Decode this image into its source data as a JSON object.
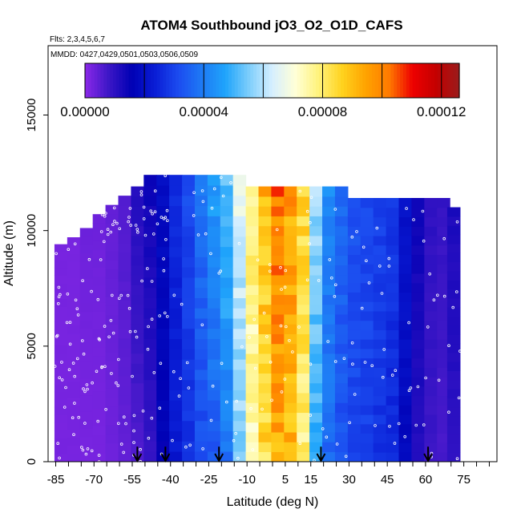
{
  "chart_data": {
    "type": "heatmap",
    "title": "ATOM4 Southbound jO3_O2_O1D_CAFS",
    "flights_label": "Flts: 2,3,4,5,6,7",
    "dates_label": "MMDD: 0427,0429,0501,0503,0506,0509",
    "xlabel": "Latitude (deg N)",
    "ylabel": "Altitude (m)",
    "xlim": [
      -88,
      88
    ],
    "ylim": [
      0,
      18000
    ],
    "x_ticks": [
      -85,
      -70,
      -55,
      -40,
      -25,
      -10,
      5,
      15,
      30,
      45,
      60,
      75
    ],
    "x_tick_labels": [
      "-85",
      "-70",
      "-55",
      "-40",
      "-25",
      "-10",
      "5",
      "15",
      "30",
      "45",
      "60",
      "75"
    ],
    "y_ticks": [
      0,
      5000,
      10000,
      15000
    ],
    "y_tick_labels": [
      "0",
      "5000",
      "10000",
      "15000"
    ],
    "colorbar": {
      "min": 0,
      "max": 0.000126,
      "ticks": [
        0,
        4e-05,
        8e-05,
        0.00012
      ],
      "tick_labels": [
        "0.00000",
        "0.00004",
        "0.00008",
        "0.00012"
      ],
      "colors": [
        "#8b28e8",
        "#3d17c7",
        "#0000b4",
        "#0a1ed6",
        "#1c4cf0",
        "#1e7af5",
        "#1fa4fb",
        "#7ccdfb",
        "#d6efff",
        "#ffffd7",
        "#fff27a",
        "#ffd21e",
        "#ffa300",
        "#ff7a00",
        "#ee0000",
        "#c40000",
        "#9a1c1c"
      ]
    },
    "arrow_latitudes": [
      -53,
      -42,
      -21,
      19,
      61
    ],
    "columns": [
      {
        "lat": -83,
        "bottom": 0,
        "top": 9400,
        "values": [
          2e-06,
          2e-06
        ]
      },
      {
        "lat": -78,
        "bottom": 0,
        "top": 9700,
        "values": [
          2e-06,
          2e-06
        ]
      },
      {
        "lat": -73,
        "bottom": 0,
        "top": 10100,
        "values": [
          2e-06,
          3e-06
        ]
      },
      {
        "lat": -68,
        "bottom": 0,
        "top": 10700,
        "values": [
          2e-06,
          3e-06
        ]
      },
      {
        "lat": -63,
        "bottom": 0,
        "top": 11100,
        "values": [
          3e-06,
          4e-06
        ]
      },
      {
        "lat": -58,
        "bottom": 0,
        "top": 11500,
        "values": [
          4e-06,
          6e-06
        ]
      },
      {
        "lat": -53,
        "bottom": 0,
        "top": 11900,
        "values": [
          6e-06,
          1.1e-05
        ]
      },
      {
        "lat": -48,
        "bottom": 0,
        "top": 12400,
        "values": [
          9e-06,
          1.4e-05
        ]
      },
      {
        "lat": -43,
        "bottom": 0,
        "top": 12400,
        "values": [
          1.6e-05,
          1.9e-05
        ]
      },
      {
        "lat": -38,
        "bottom": 0,
        "top": 12400,
        "values": [
          2.2e-05,
          2.6e-05
        ]
      },
      {
        "lat": -33,
        "bottom": 0,
        "top": 12400,
        "values": [
          2.7e-05,
          3.1e-05
        ]
      },
      {
        "lat": -28,
        "bottom": 0,
        "top": 12400,
        "values": [
          3.1e-05,
          3.8e-05
        ]
      },
      {
        "lat": -23,
        "bottom": 0,
        "top": 12400,
        "values": [
          3.3e-05,
          4.6e-05
        ]
      },
      {
        "lat": -18,
        "bottom": 0,
        "top": 12400,
        "values": [
          3.8e-05,
          5.3e-05
        ]
      },
      {
        "lat": -13,
        "bottom": 0,
        "top": 12400,
        "values": [
          5.5e-05,
          6.5e-05
        ]
      },
      {
        "lat": -8,
        "bottom": 0,
        "top": 11900,
        "values": [
          7.2e-05,
          8e-05
        ]
      },
      {
        "lat": -3,
        "bottom": 0,
        "top": 11900,
        "values": [
          8.4e-05,
          9.2e-05
        ]
      },
      {
        "lat": 2,
        "bottom": 0,
        "top": 11900,
        "values": [
          9.2e-05,
          0.000102
        ]
      },
      {
        "lat": 7,
        "bottom": 0,
        "top": 11900,
        "values": [
          9e-05,
          9.6e-05
        ]
      },
      {
        "lat": 12,
        "bottom": 0,
        "top": 11900,
        "values": [
          7.8e-05,
          8.5e-05
        ]
      },
      {
        "lat": 17,
        "bottom": 0,
        "top": 11900,
        "values": [
          4.8e-05,
          5.8e-05
        ]
      },
      {
        "lat": 22,
        "bottom": 0,
        "top": 11900,
        "values": [
          3.6e-05,
          4.2e-05
        ]
      },
      {
        "lat": 27,
        "bottom": 0,
        "top": 11900,
        "values": [
          3.2e-05,
          3.6e-05
        ]
      },
      {
        "lat": 32,
        "bottom": 0,
        "top": 11400,
        "values": [
          3e-05,
          3.3e-05
        ]
      },
      {
        "lat": 37,
        "bottom": 0,
        "top": 11400,
        "values": [
          2.9e-05,
          3.1e-05
        ]
      },
      {
        "lat": 42,
        "bottom": 0,
        "top": 11400,
        "values": [
          2.7e-05,
          3e-05
        ]
      },
      {
        "lat": 47,
        "bottom": 0,
        "top": 11400,
        "values": [
          2.5e-05,
          2.8e-05
        ]
      },
      {
        "lat": 52,
        "bottom": 0,
        "top": 11400,
        "values": [
          1.8e-05,
          2.1e-05
        ]
      },
      {
        "lat": 57,
        "bottom": 0,
        "top": 11400,
        "values": [
          1.1e-05,
          1.4e-05
        ]
      },
      {
        "lat": 62,
        "bottom": 0,
        "top": 11400,
        "values": [
          8e-06,
          1e-05
        ]
      },
      {
        "lat": 67,
        "bottom": 0,
        "top": 11400,
        "values": [
          7e-06,
          9e-06
        ]
      },
      {
        "lat": 71,
        "bottom": 0,
        "top": 11000,
        "values": [
          1e-05,
          1.2e-05
        ]
      }
    ]
  }
}
